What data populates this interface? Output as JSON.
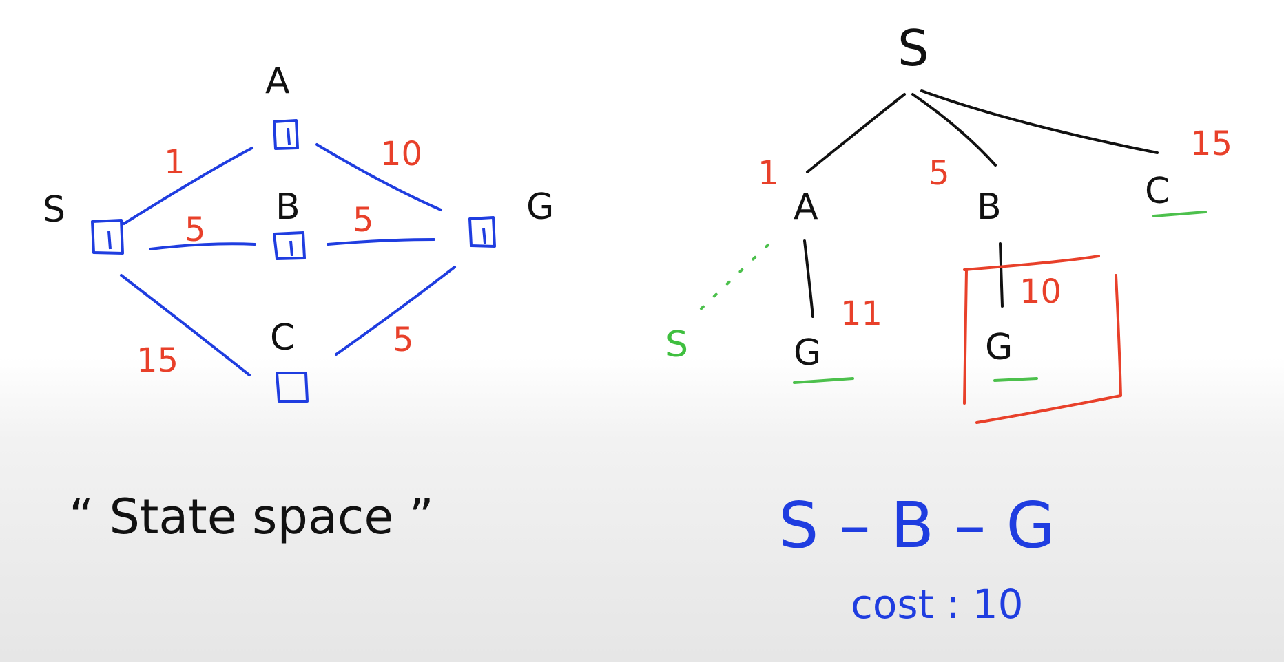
{
  "state_space": {
    "nodes": [
      {
        "id": "S",
        "label": "S"
      },
      {
        "id": "A",
        "label": "A"
      },
      {
        "id": "B",
        "label": "B"
      },
      {
        "id": "C",
        "label": "C"
      },
      {
        "id": "G",
        "label": "G"
      }
    ],
    "edges": [
      {
        "from": "S",
        "to": "A",
        "cost": "1"
      },
      {
        "from": "S",
        "to": "B",
        "cost": "5"
      },
      {
        "from": "S",
        "to": "C",
        "cost": "15"
      },
      {
        "from": "A",
        "to": "G",
        "cost": "10"
      },
      {
        "from": "B",
        "to": "G",
        "cost": "5"
      },
      {
        "from": "C",
        "to": "G",
        "cost": "5"
      }
    ],
    "caption": "“ State space ”"
  },
  "search_tree": {
    "root": "S",
    "children": [
      {
        "label": "A",
        "cost": "1"
      },
      {
        "label": "B",
        "cost": "5"
      },
      {
        "label": "C",
        "cost": "15"
      }
    ],
    "a_children": [
      {
        "label": "G",
        "cost": "11"
      },
      {
        "label": "S"
      }
    ],
    "b_children": [
      {
        "label": "G",
        "cost": "10"
      }
    ]
  },
  "result": {
    "path": "S – B – G",
    "cost_text": "cost : 10"
  },
  "colors": {
    "state_space_ink": "#1f3de0",
    "cost_ink": "#e8402a",
    "tree_ink": "#111111",
    "marker_ink": "#3fbf3f"
  }
}
